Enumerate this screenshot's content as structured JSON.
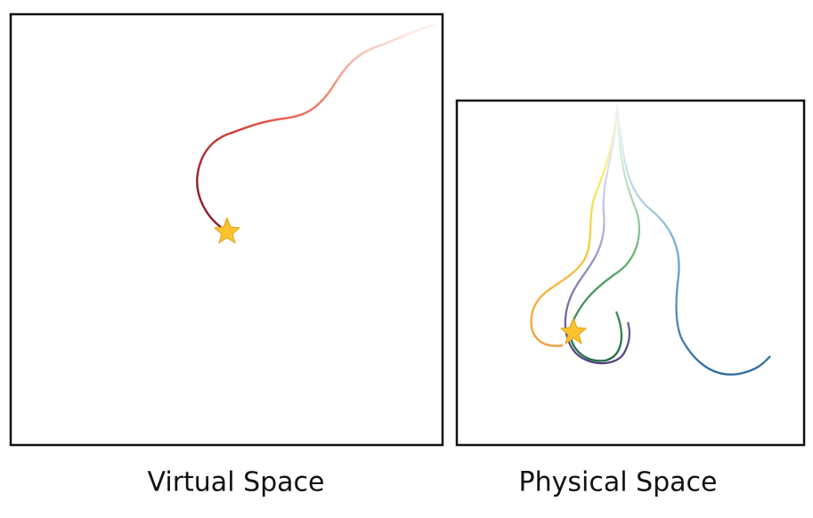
{
  "panels": [
    {
      "caption": "Virtual Space"
    },
    {
      "caption": "Physical Space"
    }
  ]
}
